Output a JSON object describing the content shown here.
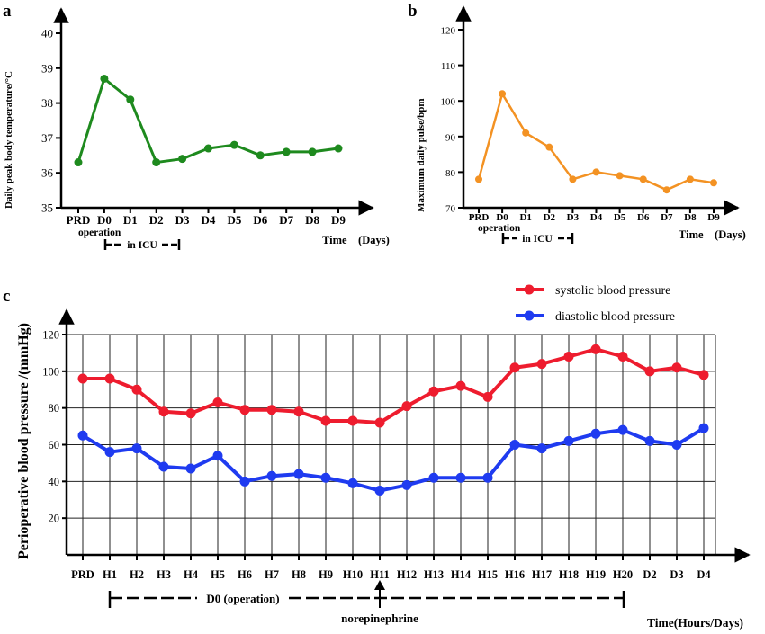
{
  "panels": {
    "a": "a",
    "b": "b",
    "c": "c"
  },
  "chart_data": [
    {
      "id": "a",
      "type": "line",
      "categories": [
        "PRD",
        "D0",
        "D1",
        "D2",
        "D3",
        "D4",
        "D5",
        "D6",
        "D7",
        "D8",
        "D9"
      ],
      "series": [
        {
          "name": "Daily peak body temperature",
          "color": "#1e8a1e",
          "values": [
            36.3,
            38.7,
            38.1,
            36.3,
            36.4,
            36.7,
            36.8,
            36.5,
            36.6,
            36.6,
            36.7
          ]
        }
      ],
      "ylabel": "Daily peak body temperature/°C",
      "xlabel": "Time　(Days)",
      "ylim": [
        35,
        40
      ],
      "yticks": [
        35,
        36,
        37,
        38,
        39,
        40
      ],
      "annotations": {
        "operation": "operation",
        "icu": "in ICU"
      }
    },
    {
      "id": "b",
      "type": "line",
      "categories": [
        "PRD",
        "D0",
        "D1",
        "D2",
        "D3",
        "D4",
        "D5",
        "D6",
        "D7",
        "D8",
        "D9"
      ],
      "series": [
        {
          "name": "Maximum daily pulse",
          "color": "#f39223",
          "values": [
            78,
            102,
            91,
            87,
            78,
            80,
            79,
            78,
            75,
            78,
            77
          ]
        }
      ],
      "ylabel": "Maximum daily pulse/bpm",
      "xlabel": "Time　(Days)",
      "ylim": [
        70,
        120
      ],
      "yticks": [
        70,
        80,
        90,
        100,
        110,
        120
      ],
      "annotations": {
        "operation": "operation",
        "icu": "in ICU"
      }
    },
    {
      "id": "c",
      "type": "line",
      "categories": [
        "PRD",
        "H1",
        "H2",
        "H3",
        "H4",
        "H5",
        "H6",
        "H7",
        "H8",
        "H9",
        "H10",
        "H11",
        "H12",
        "H13",
        "H14",
        "H15",
        "H16",
        "H17",
        "H18",
        "H19",
        "H20",
        "D2",
        "D3",
        "D4"
      ],
      "series": [
        {
          "name": "systolic blood pressure",
          "color": "#ee1c2e",
          "values": [
            96,
            96,
            90,
            78,
            77,
            83,
            79,
            79,
            78,
            73,
            73,
            72,
            81,
            89,
            92,
            86,
            102,
            104,
            108,
            112,
            108,
            100,
            102,
            98
          ]
        },
        {
          "name": "diastolic blood pressure",
          "color": "#1f3bf0",
          "values": [
            65,
            56,
            58,
            48,
            47,
            54,
            40,
            43,
            44,
            42,
            39,
            35,
            38,
            42,
            42,
            42,
            60,
            58,
            62,
            66,
            68,
            62,
            60,
            69
          ]
        }
      ],
      "ylabel": "Perioperative blood pressure /(mmHg)",
      "xlabel": "Time(Hours/Days)",
      "ylim": [
        0,
        120
      ],
      "yticks": [
        20,
        40,
        60,
        80,
        100,
        120
      ],
      "grid": true,
      "legend": "top-right",
      "annotations": {
        "operation": "D0 (operation)",
        "drug": "norepinephrine"
      }
    }
  ]
}
